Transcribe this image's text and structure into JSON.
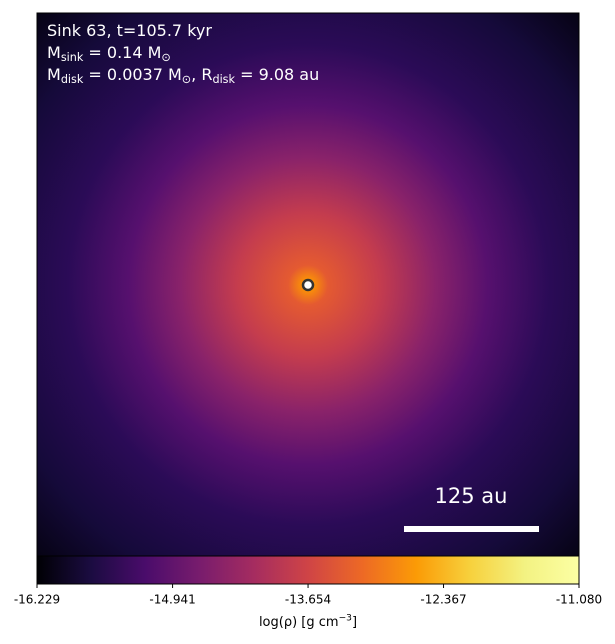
{
  "chart_data": {
    "type": "image",
    "annotation_lines": [
      [
        {
          "text": "Sink 63, t=105.7 kyr"
        }
      ],
      [
        {
          "text": "M"
        },
        {
          "text": "sink",
          "sub": true
        },
        {
          "text": " = 0.14 M"
        },
        {
          "text": "⊙",
          "sub": true
        }
      ],
      [
        {
          "text": "M"
        },
        {
          "text": "disk",
          "sub": true
        },
        {
          "text": " = 0.0037 M"
        },
        {
          "text": "⊙",
          "sub": true
        },
        {
          "text": ", R"
        },
        {
          "text": "disk",
          "sub": true
        },
        {
          "text": " = 9.08 au"
        }
      ]
    ],
    "scale_bar_label": "125 au",
    "colormap": "inferno",
    "clim": [
      -16.229,
      -11.08
    ],
    "cticks": [
      -16.229,
      -14.941,
      -13.654,
      -12.367,
      {
        "value": -11.08,
        "label": "-11.080"
      }
    ],
    "colorbar_label": [
      {
        "text": "log(ρ) [g cm"
      },
      {
        "text": "−3",
        "sup": true
      },
      {
        "text": "]"
      }
    ]
  }
}
